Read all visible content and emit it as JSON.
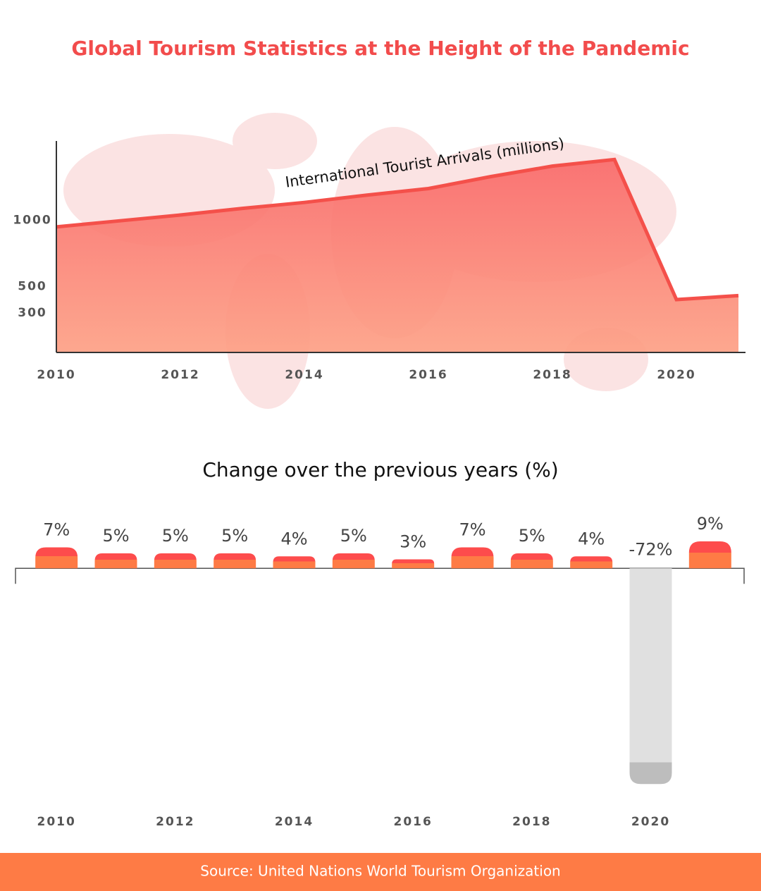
{
  "title": "Global Tourism Statistics at the Height of the Pandemic",
  "chart_data": [
    {
      "type": "area",
      "ylabel": "International Tourist Arrivals (millions)",
      "x": [
        2010,
        2011,
        2012,
        2013,
        2014,
        2015,
        2016,
        2017,
        2018,
        2019,
        2020,
        2021
      ],
      "values": [
        950,
        995,
        1040,
        1090,
        1135,
        1190,
        1240,
        1330,
        1410,
        1460,
        400,
        430
      ],
      "xlim": [
        2010,
        2021
      ],
      "xticks": [
        2010,
        2012,
        2014,
        2016,
        2018,
        2020
      ],
      "ylim": [
        0,
        1600
      ],
      "yticks": [
        300,
        500,
        1000
      ],
      "colors": [
        "#f96a6a",
        "#fda085"
      ],
      "line_color": "#f4504a"
    },
    {
      "type": "bar",
      "title": "Change over the previous years (%)",
      "categories": [
        "2010",
        null,
        "2012",
        null,
        "2014",
        null,
        "2016",
        null,
        "2018",
        null,
        "2020",
        null
      ],
      "values": [
        7,
        5,
        5,
        5,
        4,
        5,
        3,
        7,
        5,
        4,
        -72,
        9
      ],
      "value_labels": [
        "7%",
        "5%",
        "5%",
        "5%",
        "4%",
        "5%",
        "3%",
        "7%",
        "5%",
        "4%",
        "-72%",
        "9%"
      ],
      "ylim": [
        -75,
        25
      ],
      "colors": [
        "#fd4c4c",
        "#fe7b45"
      ],
      "negative_colors": [
        "#e0e0e0",
        "#bdbdbd"
      ]
    }
  ],
  "source": "Source: United Nations World Tourism Organization"
}
